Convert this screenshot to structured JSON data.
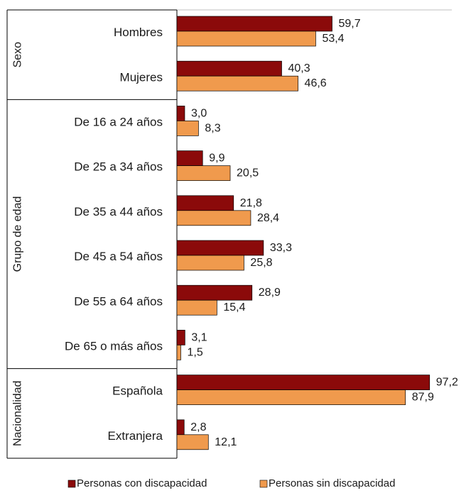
{
  "chart_data": {
    "type": "bar",
    "orientation": "horizontal",
    "title": "",
    "xlabel": "",
    "ylabel": "",
    "xlim": [
      0,
      100
    ],
    "grid": false,
    "legend_position": "bottom",
    "colors": {
      "con": "#8b0a0a",
      "sin": "#f09a4d"
    },
    "groups": [
      {
        "name": "Sexo",
        "categories": [
          "Hombres",
          "Mujeres"
        ]
      },
      {
        "name": "Grupo de edad",
        "categories": [
          "De 16 a 24 años",
          "De 25 a 34 años",
          "De 35 a 44 años",
          "De 45 a 54 años",
          "De 55 a 64 años",
          "De 65 o más años"
        ]
      },
      {
        "name": "Nacionalidad",
        "categories": [
          "Española",
          "Extranjera"
        ]
      }
    ],
    "categories": [
      "Hombres",
      "Mujeres",
      "De 16 a 24 años",
      "De 25 a 34 años",
      "De 35 a 44 años",
      "De 45 a 54 años",
      "De 55 a 64 años",
      "De 65 o más años",
      "Española",
      "Extranjera"
    ],
    "series": [
      {
        "name": "Personas con discapacidad",
        "values": [
          59.7,
          40.3,
          3.0,
          9.9,
          21.8,
          33.3,
          28.9,
          3.1,
          97.2,
          2.8
        ],
        "labels": [
          "59,7",
          "40,3",
          "3,0",
          "9,9",
          "21,8",
          "33,3",
          "28,9",
          "3,1",
          "97,2",
          "2,8"
        ]
      },
      {
        "name": "Personas sin discapacidad",
        "values": [
          53.4,
          46.6,
          8.3,
          20.5,
          28.4,
          25.8,
          15.4,
          1.5,
          87.9,
          12.1
        ],
        "labels": [
          "53,4",
          "46,6",
          "8,3",
          "20,5",
          "28,4",
          "25,8",
          "15,4",
          "1,5",
          "87,9",
          "12,1"
        ]
      }
    ]
  }
}
